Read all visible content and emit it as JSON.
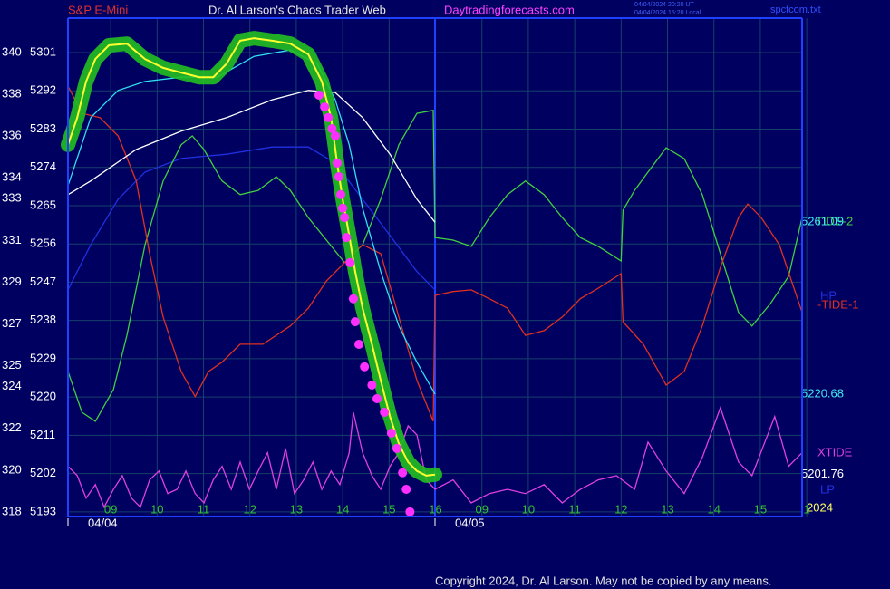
{
  "header": {
    "left": "S&P E-Mini",
    "center": "Dr. Al Larson's Chaos Trader Web",
    "site": "Daytradingforecasts.com",
    "stamp_ut": "04/04/2024 20:20 UT",
    "stamp_local": "04/04/2024 15:20 Local",
    "file": "spcfcom.txt"
  },
  "footer": {
    "copyright": "Copyright 2024, Dr. Al Larson. May not be copied by any means."
  },
  "chart_data": {
    "type": "line",
    "xlim": [
      8.08,
      23.9
    ],
    "xticks": [
      {
        "value": 9,
        "label": "09"
      },
      {
        "value": 10,
        "label": "10"
      },
      11,
      12,
      13,
      14,
      15,
      16,
      {
        "value": 17,
        "label": "09"
      },
      {
        "value": 18,
        "label": "10"
      },
      {
        "value": 19,
        "label": "11"
      },
      {
        "value": 20,
        "label": "12"
      },
      {
        "value": 21,
        "label": "13"
      },
      {
        "value": 22,
        "label": "14"
      },
      {
        "value": 23,
        "label": "15"
      },
      {
        "value": 24,
        "label": "1"
      }
    ],
    "days": [
      {
        "x": 8.08,
        "label": "04/04"
      },
      {
        "x": 15.99,
        "label": "04/05"
      }
    ],
    "year_label": "2024",
    "ylim": [
      5191.9,
      5309.1
    ],
    "yticks": [
      5301,
      5292,
      5283,
      5274,
      5265,
      5256,
      5247,
      5238,
      5229,
      5220,
      5211,
      5202,
      5193
    ],
    "y2lim": [
      317.78,
      341.65
    ],
    "y2ticks": [
      340,
      338,
      336,
      334,
      333,
      331,
      329,
      327,
      325,
      324,
      322,
      320,
      318
    ],
    "grid": true,
    "annotations": [
      "LP"
    ],
    "series": [
      {
        "name": "HP",
        "color": "#2030e0",
        "style": "line",
        "x": [
          8.08,
          8.57,
          9.16,
          9.74,
          10.52,
          11.5,
          12.48,
          13.26,
          13.84,
          14.43,
          15.02,
          15.6,
          15.99
        ],
        "values": [
          5245.2,
          5255.8,
          5266.5,
          5272.9,
          5276.1,
          5277.1,
          5278.8,
          5278.8,
          5275.0,
          5266.5,
          5258.0,
          5249.5,
          5245.2
        ]
      },
      {
        "name": "TIDE-2",
        "color": "#40d040",
        "style": "line",
        "x": [
          8.08,
          8.38,
          8.67,
          9.06,
          9.35,
          9.74,
          10.13,
          10.52,
          10.76,
          11.01,
          11.4,
          11.79,
          12.18,
          12.57,
          12.87,
          13.26,
          13.65,
          14.04,
          14.43,
          14.82,
          15.21,
          15.6,
          15.95,
          15.99,
          16.38,
          16.77,
          17.16,
          17.55,
          17.94,
          18.34,
          18.73,
          19.12,
          19.51,
          20.0,
          20.04,
          20.29,
          20.58,
          20.97,
          21.36,
          21.75,
          22.14,
          22.53,
          22.82,
          23.22,
          23.61,
          23.9
        ],
        "values": [
          5226.0,
          5216.4,
          5214.3,
          5221.8,
          5234.5,
          5255.8,
          5270.8,
          5279.3,
          5281.4,
          5278.2,
          5270.8,
          5267.6,
          5268.6,
          5271.8,
          5268.6,
          5262.2,
          5256.9,
          5251.6,
          5255.8,
          5266.5,
          5279.3,
          5286.7,
          5287.4,
          5257.5,
          5256.9,
          5255.4,
          5262.2,
          5267.6,
          5270.8,
          5267.6,
          5262.2,
          5257.5,
          5255.4,
          5252.0,
          5263.9,
          5268.6,
          5272.9,
          5278.6,
          5276.1,
          5267.6,
          5253.7,
          5239.9,
          5236.7,
          5242.0,
          5248.4,
          5262.2
        ]
      },
      {
        "name": "-TIDE-1",
        "color": "#e03020",
        "style": "line",
        "x": [
          8.08,
          8.38,
          8.77,
          9.16,
          9.55,
          9.84,
          10.13,
          10.52,
          10.82,
          11.11,
          11.4,
          11.79,
          12.28,
          12.87,
          13.26,
          13.65,
          14.04,
          14.43,
          14.82,
          15.21,
          15.6,
          15.95,
          15.99,
          16.38,
          16.77,
          17.16,
          17.55,
          17.94,
          18.34,
          18.73,
          19.12,
          19.51,
          20.0,
          20.04,
          20.48,
          20.97,
          21.36,
          21.75,
          22.14,
          22.53,
          22.73,
          23.02,
          23.41,
          23.9
        ],
        "values": [
          5293.1,
          5286.7,
          5285.7,
          5281.4,
          5270.8,
          5253.7,
          5238.8,
          5226.0,
          5220.1,
          5226.0,
          5228.2,
          5232.4,
          5232.4,
          5236.7,
          5240.9,
          5247.3,
          5251.6,
          5255.8,
          5253.7,
          5238.8,
          5223.9,
          5214.3,
          5243.9,
          5244.8,
          5245.2,
          5243.1,
          5240.9,
          5234.5,
          5235.6,
          5238.8,
          5243.1,
          5245.6,
          5249.0,
          5237.7,
          5232.4,
          5222.8,
          5226.0,
          5236.7,
          5250.5,
          5262.2,
          5265.4,
          5262.2,
          5255.8,
          5239.9
        ]
      },
      {
        "name": "XTIDE",
        "color": "#e040e0",
        "style": "line",
        "x": [
          8.08,
          8.28,
          8.47,
          8.67,
          8.86,
          9.06,
          9.25,
          9.45,
          9.64,
          9.84,
          10.04,
          10.23,
          10.43,
          10.62,
          10.82,
          11.01,
          11.21,
          11.4,
          11.6,
          11.79,
          11.99,
          12.18,
          12.38,
          12.57,
          12.77,
          12.96,
          13.16,
          13.36,
          13.55,
          13.75,
          13.94,
          14.14,
          14.23,
          14.43,
          14.63,
          14.82,
          15.02,
          15.21,
          15.41,
          15.6,
          15.8,
          15.99,
          16.38,
          16.77,
          17.16,
          17.55,
          17.94,
          18.34,
          18.73,
          19.12,
          19.51,
          19.9,
          20.29,
          20.58,
          20.97,
          21.36,
          21.75,
          22.14,
          22.53,
          22.82,
          23.31,
          23.61,
          23.9
        ],
        "values": [
          5203.7,
          5201.5,
          5196.2,
          5199.4,
          5194.1,
          5198.3,
          5201.5,
          5196.2,
          5194.1,
          5200.5,
          5202.6,
          5197.3,
          5198.3,
          5202.6,
          5197.3,
          5195.1,
          5200.5,
          5203.7,
          5198.3,
          5204.7,
          5198.3,
          5202.6,
          5206.9,
          5198.3,
          5207.9,
          5197.3,
          5200.5,
          5204.7,
          5198.3,
          5202.6,
          5199.4,
          5206.9,
          5216.4,
          5206.9,
          5201.5,
          5198.3,
          5203.7,
          5206.9,
          5213.2,
          5211.1,
          5200.5,
          5198.3,
          5200.5,
          5195.1,
          5197.3,
          5198.3,
          5197.3,
          5199.4,
          5195.1,
          5198.3,
          5200.5,
          5201.5,
          5198.3,
          5209.4,
          5202.6,
          5197.3,
          5205.8,
          5217.5,
          5204.7,
          5201.5,
          5215.4,
          5203.7,
          5206.9
        ]
      },
      {
        "color": "#ffffff",
        "style": "line",
        "end_label": true,
        "x": [
          8.08,
          8.57,
          9.55,
          10.52,
          11.5,
          12.48,
          13.26,
          13.84,
          14.43,
          15.02,
          15.6,
          15.99
        ],
        "values": [
          5267.6,
          5270.8,
          5278.2,
          5282.5,
          5285.7,
          5289.9,
          5292.1,
          5291.6,
          5285.7,
          5277.1,
          5266.5,
          5261.09
        ]
      },
      {
        "color": "#30e0f0",
        "style": "line",
        "end_label": true,
        "x": [
          8.08,
          8.57,
          9.16,
          9.74,
          10.52,
          11.3,
          12.09,
          12.87,
          13.45,
          13.84,
          14.14,
          14.43,
          14.82,
          15.21,
          15.6,
          15.99
        ],
        "values": [
          5269.7,
          5285.7,
          5292.1,
          5294.2,
          5295.2,
          5295.2,
          5300.1,
          5301.6,
          5298.4,
          5289.9,
          5279.3,
          5264.4,
          5249.5,
          5236.7,
          5228.2,
          5220.68
        ]
      },
      {
        "color": "#ffff30",
        "halo_color": "#22c022",
        "style": "halo-line",
        "end_label": true,
        "x": [
          8.08,
          8.28,
          8.47,
          8.67,
          8.96,
          9.35,
          9.74,
          10.13,
          10.52,
          10.91,
          11.21,
          11.5,
          11.79,
          12.09,
          12.48,
          12.87,
          13.26,
          13.55,
          13.75,
          13.88,
          14.0,
          14.14,
          14.27,
          14.43,
          14.63,
          14.82,
          15.02,
          15.21,
          15.41,
          15.6,
          15.8,
          15.99
        ],
        "values": [
          5279.3,
          5285.7,
          5294.2,
          5299.5,
          5302.7,
          5303.1,
          5299.5,
          5297.4,
          5296.3,
          5295.2,
          5295.2,
          5298.4,
          5303.8,
          5304.4,
          5303.8,
          5303.1,
          5300.6,
          5294.2,
          5285.7,
          5275.0,
          5266.5,
          5258.0,
          5249.5,
          5240.9,
          5232.4,
          5223.9,
          5215.4,
          5209.0,
          5204.7,
          5202.6,
          5201.5,
          5201.76
        ]
      },
      {
        "color": "#ff30ff",
        "style": "dots",
        "x": [
          13.49,
          13.61,
          13.69,
          13.77,
          13.84,
          13.88,
          13.92,
          13.96,
          14.0,
          14.04,
          14.08,
          14.16,
          14.23,
          14.27,
          14.35,
          14.47,
          14.63,
          14.74,
          14.9,
          15.05,
          15.17,
          15.29,
          15.37,
          15.45
        ],
        "values": [
          5291.0,
          5288.2,
          5285.7,
          5283.1,
          5281.4,
          5275.0,
          5271.8,
          5267.6,
          5264.4,
          5262.2,
          5257.5,
          5251.6,
          5243.1,
          5237.7,
          5232.4,
          5227.1,
          5222.8,
          5219.6,
          5216.4,
          5211.5,
          5207.9,
          5202.2,
          5198.3,
          5193.0
        ]
      }
    ]
  }
}
